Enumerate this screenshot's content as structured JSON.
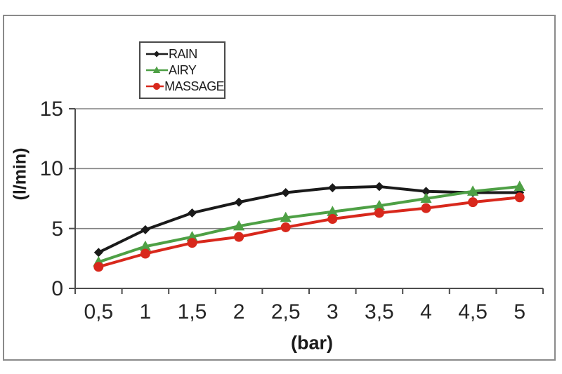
{
  "colors": {
    "grid": "#808080",
    "axis": "#4d4d4d",
    "tick_text": "#262626",
    "frame_border": "#8a8a8a",
    "legend_border": "#4a4a4a",
    "background": "#ffffff"
  },
  "legend": {
    "items": [
      {
        "label": "RAIN"
      },
      {
        "label": "AIRY"
      },
      {
        "label": "MASSAGE"
      }
    ]
  },
  "chart_data": {
    "type": "line",
    "title": "",
    "xlabel": "(bar)",
    "ylabel": "(l/min)",
    "categories": [
      "0,5",
      "1",
      "1,5",
      "2",
      "2,5",
      "3",
      "3,5",
      "4",
      "4,5",
      "5"
    ],
    "x_numeric": [
      0.5,
      1,
      1.5,
      2,
      2.5,
      3,
      3.5,
      4,
      4.5,
      5
    ],
    "series": [
      {
        "name": "RAIN",
        "color": "#1a1a1a",
        "marker": "diamond",
        "values": [
          3.0,
          4.9,
          6.3,
          7.2,
          8.0,
          8.4,
          8.5,
          8.1,
          8.0,
          8.0
        ]
      },
      {
        "name": "AIRY",
        "color": "#4ea045",
        "marker": "triangle",
        "values": [
          2.2,
          3.5,
          4.3,
          5.2,
          5.9,
          6.4,
          6.9,
          7.5,
          8.1,
          8.5
        ]
      },
      {
        "name": "MASSAGE",
        "color": "#d8281c",
        "marker": "circle",
        "values": [
          1.8,
          2.9,
          3.8,
          4.3,
          5.1,
          5.8,
          6.3,
          6.7,
          7.2,
          7.6
        ]
      }
    ],
    "ylim": [
      0,
      15
    ],
    "yticks": [
      0,
      5,
      10,
      15
    ],
    "grid": true,
    "legend_position": "top-left-inside"
  }
}
